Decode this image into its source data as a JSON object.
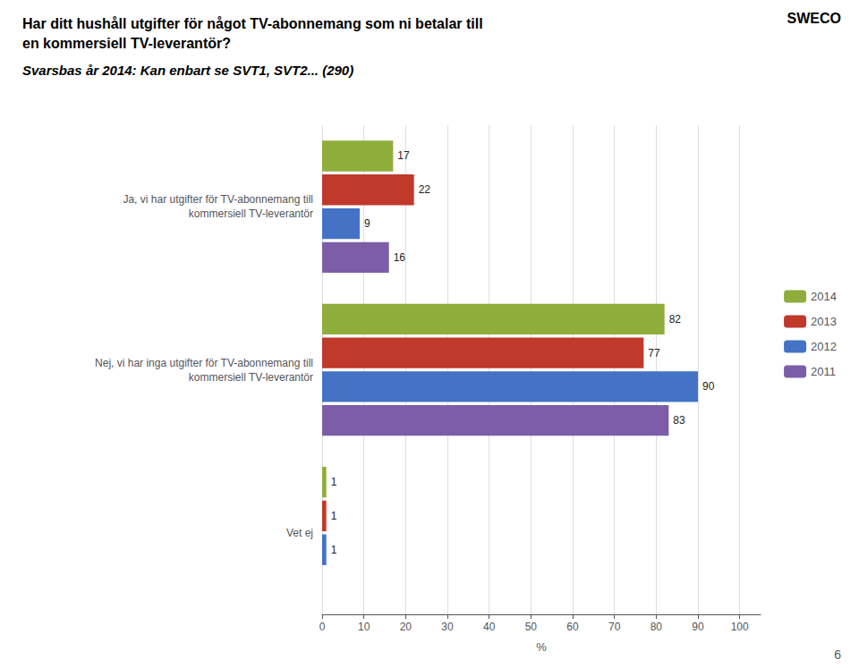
{
  "chart_data": {
    "type": "bar",
    "orientation": "horizontal",
    "title": "Har ditt hushåll utgifter för något TV-abonnemang som ni betalar till\nen kommersiell TV-leverantör?",
    "subtitle": "Svarsbas år 2014: Kan enbart se SVT1, SVT2... (290)",
    "annotations": [
      "SWECO",
      "6"
    ],
    "categories": [
      "Ja, vi har utgifter för TV-abonnemang till\nkommersiell TV-leverantör",
      "Nej, vi har inga utgifter för TV-abonnemang till\nkommersiell TV-leverantör",
      "Vet ej"
    ],
    "series": [
      {
        "name": "2014",
        "color": "#8fad3b",
        "values": [
          17,
          82,
          1
        ]
      },
      {
        "name": "2013",
        "color": "#c0392b",
        "values": [
          22,
          77,
          1
        ]
      },
      {
        "name": "2012",
        "color": "#4472c4",
        "values": [
          9,
          90,
          1
        ]
      },
      {
        "name": "2011",
        "color": "#7b5ea7",
        "values": [
          16,
          83,
          0
        ],
        "value_labels": [
          "16",
          "83",
          null
        ]
      }
    ],
    "xlabel": "%",
    "xlim": [
      0,
      105
    ],
    "xticks": [
      0,
      10,
      20,
      30,
      40,
      50,
      60,
      70,
      80,
      90,
      100
    ],
    "grid": true,
    "legend": "right",
    "data_labels": true
  }
}
